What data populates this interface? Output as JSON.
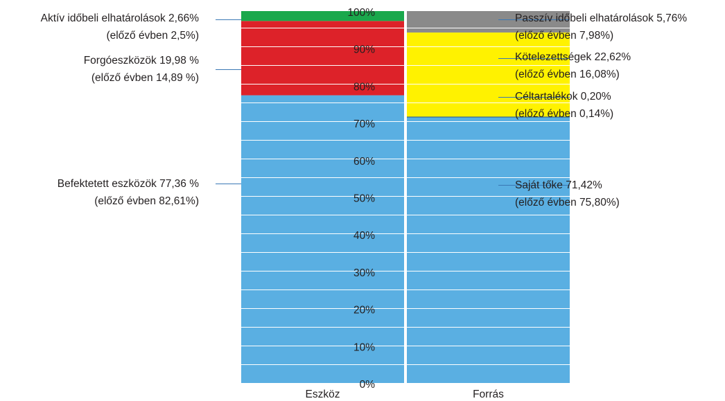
{
  "chart_data": {
    "type": "bar",
    "stacked": true,
    "categories": [
      "Eszköz",
      "Forrás"
    ],
    "y_axis": {
      "min": 0,
      "max": 100,
      "unit": "%",
      "ticks": [
        "0%",
        "10%",
        "20%",
        "30%",
        "40%",
        "50%",
        "60%",
        "70%",
        "80%",
        "90%",
        "100%"
      ]
    },
    "grid": false,
    "colors": {
      "blue": "#5aafe2",
      "red": "#dd2229",
      "green": "#1aa84c",
      "yellow": "#fff200",
      "gray": "#8a8a8a",
      "dark_blue": "#1f4e79",
      "leader": "#3a78b5",
      "text": "#231f20"
    },
    "columns": [
      {
        "category": "Eszköz",
        "label_side": "left",
        "segments": [
          {
            "key": "befektetett",
            "value": 77.36,
            "color": "#5aafe2",
            "label": "Befektetett eszközök 77,36 %",
            "sublabel": "(előző évben 82,61%)"
          },
          {
            "key": "forgoeszkozok",
            "value": 19.98,
            "color": "#dd2229",
            "label": "Forgóeszközök 19,98 %",
            "sublabel": "(előző évben 14,89 %)"
          },
          {
            "key": "aktiv",
            "value": 2.66,
            "color": "#1aa84c",
            "label": "Aktív időbeli elhatárolások 2,66%",
            "sublabel": "(előző évben 2,5%)"
          }
        ]
      },
      {
        "category": "Forrás",
        "label_side": "right",
        "segments": [
          {
            "key": "sajat",
            "value": 71.42,
            "color": "#5aafe2",
            "label": "Saját tőke 71,42%",
            "sublabel": "(előző évben 75,80%)"
          },
          {
            "key": "celtartalek",
            "value": 0.2,
            "color": "#1f4e79",
            "label": "Céltartalékok 0,20%",
            "sublabel": "(előző évben 0,14%)"
          },
          {
            "key": "kotelezettseg",
            "value": 22.62,
            "color": "#fff200",
            "label": "Kötelezettségek 22,62%",
            "sublabel": "(előző évben 16,08%)"
          },
          {
            "key": "passziv",
            "value": 5.76,
            "color": "#8a8a8a",
            "label": "Passzív időbeli elhatárolások 5,76%",
            "sublabel": "(előző évben 7,98%)"
          }
        ]
      }
    ]
  }
}
